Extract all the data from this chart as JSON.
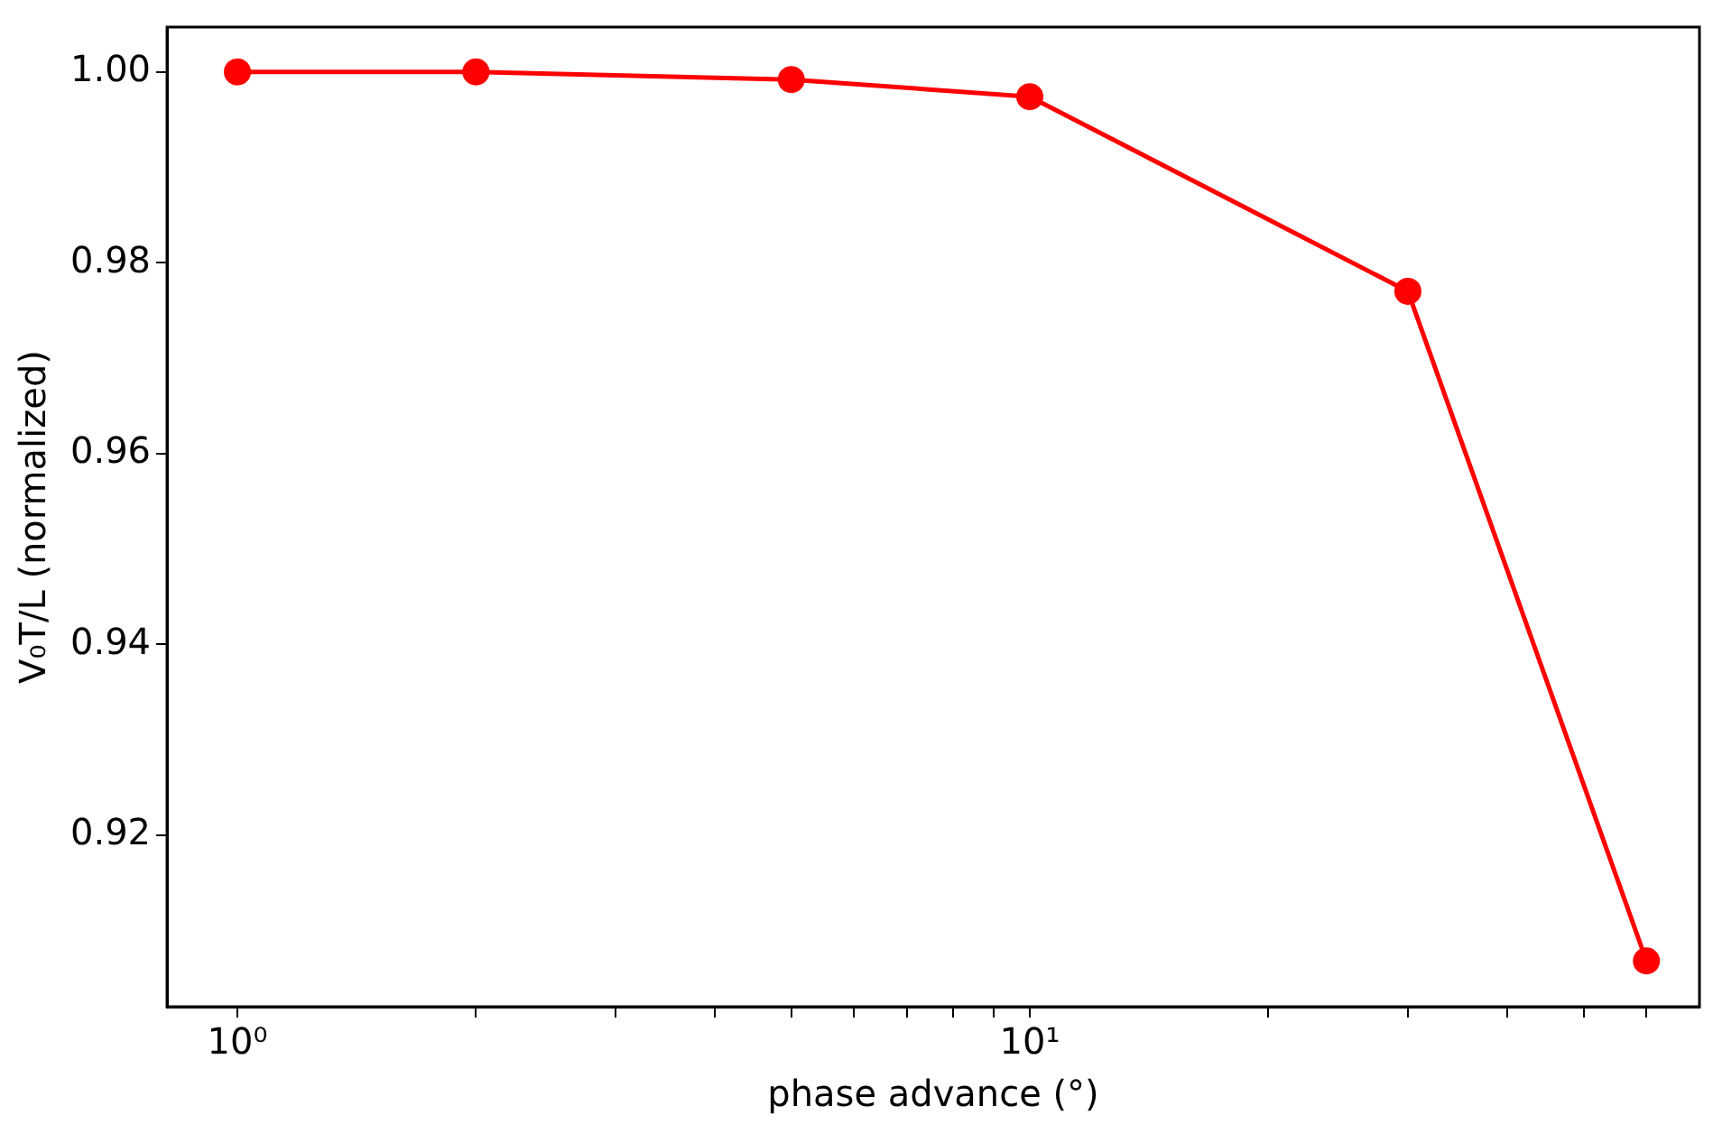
{
  "chart_data": {
    "type": "line",
    "xlabel": "phase advance (°)",
    "ylabel": "V₀T/L (normalized)",
    "x": [
      1,
      2,
      5,
      10,
      30,
      60
    ],
    "series": [
      {
        "color": "#ff0000",
        "values": [
          1.0,
          1.0,
          0.9992,
          0.9974,
          0.977,
          0.9068
        ]
      }
    ],
    "log": "x",
    "xlim": [
      0.815,
      70
    ],
    "ylim": [
      0.902,
      1.0047
    ],
    "xticks": [
      {
        "value": 1,
        "label": "10⁰"
      },
      {
        "value": 2,
        "label": null
      },
      {
        "value": 3,
        "label": null
      },
      {
        "value": 4,
        "label": null
      },
      {
        "value": 5,
        "label": null
      },
      {
        "value": 6,
        "label": null
      },
      {
        "value": 7,
        "label": null
      },
      {
        "value": 8,
        "label": null
      },
      {
        "value": 9,
        "label": null
      },
      {
        "value": 10,
        "label": "10¹"
      },
      {
        "value": 20,
        "label": null
      },
      {
        "value": 30,
        "label": null
      },
      {
        "value": 40,
        "label": null
      },
      {
        "value": 50,
        "label": null
      },
      {
        "value": 60,
        "label": null
      }
    ],
    "yticks": [
      0.92,
      0.94,
      0.96,
      0.98,
      {
        "value": 1,
        "label": "1.00"
      }
    ],
    "grid": false,
    "legend": false,
    "marker": "circle",
    "line_style": "solid"
  }
}
